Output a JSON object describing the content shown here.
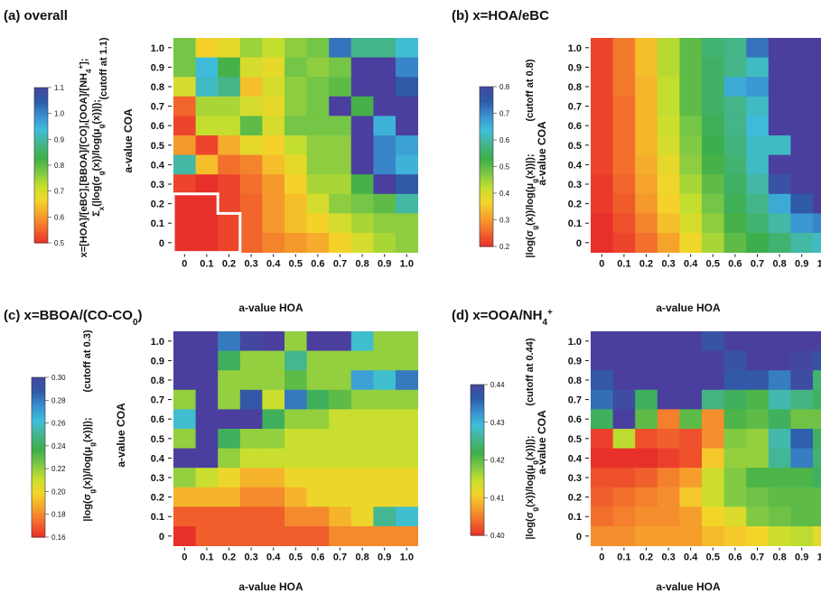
{
  "panels": [
    {
      "title": "(a) overall",
      "title_parts": [
        "(a) overall"
      ],
      "xlabel": "a-value HOA",
      "ylabel": "a-value COA",
      "colorbar_label_lines": [
        "x=[HOA]/[eBC],[BBOA]/[CO],[OOA]/[NH4+];",
        "Σx(|log(σg(x))/log(μg(x))|);",
        "(cutoff at 1.1)"
      ],
      "colorbar_label": "x=[HOA]/[eBC],[BBOA]/[CO],[OOA]/[NH",
      "colorbar_label_sub": "4",
      "colorbar_label_sup": "+",
      "colorbar_label_tail": "];",
      "colorbar_label2": "Σ",
      "colorbar_label2_sub": "x",
      "colorbar_label2_tail": "(|log(σ",
      "colorbar_label2_sub2": "g",
      "colorbar_label2_tail2": "(x))/log(μ",
      "colorbar_label2_sub3": "g",
      "colorbar_label2_tail3": "(x))|);",
      "cutoff": "(cutoff at 1.1)",
      "colorbar_ticks": [
        "0.5",
        "0.6",
        "0.7",
        "0.8",
        "0.9",
        "1.0",
        "1.1"
      ]
    },
    {
      "title": "(b) x=HOA/eBC",
      "xlabel": "a-value HOA",
      "ylabel": "a-value COA",
      "colorbar_label": "|log(σ",
      "colorbar_label_sub": "g",
      "colorbar_label_tail": "(x))/log(μ",
      "colorbar_label_sub2": "g",
      "colorbar_label_tail2": "(x))|);",
      "cutoff": "(cutoff at 0.8)",
      "colorbar_ticks": [
        "0.2",
        "0.3",
        "0.4",
        "0.5",
        "0.6",
        "0.7",
        "0.8"
      ]
    },
    {
      "title": "(c) x=BBOA/(CO-CO",
      "title_sub": "0",
      "title_tail": ")",
      "xlabel": "a-value HOA",
      "ylabel": "a-value COA",
      "colorbar_label": "|log(σ",
      "colorbar_label_sub": "g",
      "colorbar_label_tail": "(x))/log(μ",
      "colorbar_label_sub2": "g",
      "colorbar_label_tail2": "(x))|);",
      "cutoff": "(cutoff at 0.3)",
      "colorbar_ticks": [
        "0.16",
        "0.18",
        "0.20",
        "0.22",
        "0.24",
        "0.26",
        "0.28",
        "0.30"
      ]
    },
    {
      "title": "(d) x=OOA/NH",
      "title_sub": "4",
      "title_sup": "+",
      "xlabel": "a-value HOA",
      "ylabel": "a-value COA",
      "colorbar_label": "|log(σ",
      "colorbar_label_sub": "g",
      "colorbar_label_tail": "(x))/log(μ",
      "colorbar_label_sub2": "g",
      "colorbar_label_tail2": "(x))|);",
      "cutoff": "(cutoff at 0.44)",
      "colorbar_ticks": [
        "0.40",
        "0.41",
        "0.42",
        "0.43",
        "0.44"
      ]
    }
  ],
  "colors": {
    "colormap": [
      "#e8302a",
      "#f26a2c",
      "#f6a22c",
      "#f4d52a",
      "#c6df2e",
      "#7ec845",
      "#3dae49",
      "#44b58a",
      "#3fbedb",
      "#3a8fd0",
      "#2e5ba8",
      "#4447a0"
    ],
    "over_color": "#4a3f9f",
    "highlight_border": "#ffffff"
  },
  "chart_data": [
    {
      "type": "heatmap",
      "title": "(a) overall",
      "xlabel": "a-value HOA",
      "ylabel": "a-value COA",
      "x_categories": [
        "0",
        "0.1",
        "0.2",
        "0.3",
        "0.4",
        "0.5",
        "0.6",
        "0.7",
        "0.8",
        "0.9",
        "1.0"
      ],
      "y_categories": [
        "0",
        "0.1",
        "0.2",
        "0.3",
        "0.4",
        "0.5",
        "0.6",
        "0.7",
        "0.8",
        "0.9",
        "1.0"
      ],
      "colorbar_range": [
        0.5,
        1.1
      ],
      "cutoff": 1.1,
      "highlighted_cells_region": "COA 0–0.2, HOA 0–0.1 plus COA 0–0.1, HOA 0.2",
      "z_rows_top_to_bottom": [
        [
          0.78,
          0.66,
          0.68,
          0.75,
          0.72,
          0.76,
          0.78,
          1.02,
          0.88,
          0.88,
          0.93
        ],
        [
          0.78,
          0.94,
          0.82,
          0.7,
          0.68,
          0.78,
          0.76,
          0.78,
          1.15,
          1.15,
          1.0
        ],
        [
          0.7,
          0.92,
          0.88,
          0.64,
          0.7,
          0.76,
          0.78,
          0.8,
          1.15,
          1.15,
          1.05
        ],
        [
          0.55,
          0.74,
          0.74,
          0.7,
          0.68,
          0.76,
          0.78,
          1.15,
          0.82,
          1.15,
          1.15
        ],
        [
          0.52,
          0.72,
          0.72,
          0.8,
          0.7,
          0.78,
          0.78,
          0.78,
          1.15,
          0.95,
          1.15
        ],
        [
          0.6,
          0.52,
          0.62,
          0.68,
          0.66,
          0.72,
          0.76,
          0.76,
          1.15,
          1.0,
          0.97
        ],
        [
          0.9,
          0.64,
          0.56,
          0.58,
          0.64,
          0.68,
          0.76,
          0.76,
          1.15,
          1.0,
          0.95
        ],
        [
          0.52,
          0.5,
          0.52,
          0.56,
          0.6,
          0.66,
          0.74,
          0.74,
          0.82,
          1.15,
          1.05
        ],
        [
          0.5,
          0.5,
          0.52,
          0.55,
          0.6,
          0.64,
          0.7,
          0.76,
          0.78,
          0.8,
          0.9
        ],
        [
          0.5,
          0.5,
          0.52,
          0.55,
          0.6,
          0.64,
          0.66,
          0.7,
          0.74,
          0.76,
          0.76
        ],
        [
          0.5,
          0.5,
          0.52,
          0.55,
          0.58,
          0.6,
          0.62,
          0.66,
          0.7,
          0.74,
          0.76
        ]
      ]
    },
    {
      "type": "heatmap",
      "title": "(b) x=HOA/eBC",
      "xlabel": "a-value HOA",
      "ylabel": "a-value COA",
      "x_categories": [
        "0",
        "0.1",
        "0.2",
        "0.3",
        "0.4",
        "0.5",
        "0.6",
        "0.7",
        "0.8",
        "0.9",
        "1.0"
      ],
      "y_categories": [
        "0",
        "0.1",
        "0.2",
        "0.3",
        "0.4",
        "0.5",
        "0.6",
        "0.7",
        "0.8",
        "0.9",
        "1.0"
      ],
      "colorbar_range": [
        0.2,
        0.8
      ],
      "cutoff": 0.8,
      "z_rows_top_to_bottom": [
        [
          0.22,
          0.27,
          0.34,
          0.43,
          0.5,
          0.56,
          0.58,
          0.72,
          0.82,
          0.82,
          0.82
        ],
        [
          0.22,
          0.27,
          0.34,
          0.43,
          0.5,
          0.55,
          0.58,
          0.62,
          0.85,
          0.85,
          0.85
        ],
        [
          0.22,
          0.27,
          0.33,
          0.42,
          0.5,
          0.55,
          0.66,
          0.68,
          0.85,
          0.85,
          0.85
        ],
        [
          0.22,
          0.26,
          0.33,
          0.42,
          0.5,
          0.55,
          0.58,
          0.62,
          0.85,
          0.85,
          0.85
        ],
        [
          0.22,
          0.26,
          0.33,
          0.41,
          0.48,
          0.54,
          0.58,
          0.64,
          0.85,
          0.85,
          0.85
        ],
        [
          0.22,
          0.26,
          0.33,
          0.4,
          0.47,
          0.53,
          0.57,
          0.62,
          0.62,
          0.85,
          0.85
        ],
        [
          0.22,
          0.26,
          0.32,
          0.38,
          0.46,
          0.52,
          0.56,
          0.62,
          0.85,
          0.85,
          0.85
        ],
        [
          0.21,
          0.25,
          0.31,
          0.37,
          0.44,
          0.5,
          0.55,
          0.6,
          0.77,
          0.85,
          0.85
        ],
        [
          0.21,
          0.24,
          0.3,
          0.36,
          0.42,
          0.48,
          0.54,
          0.58,
          0.66,
          0.75,
          0.85
        ],
        [
          0.2,
          0.23,
          0.28,
          0.34,
          0.4,
          0.46,
          0.52,
          0.56,
          0.6,
          0.68,
          0.7
        ],
        [
          0.2,
          0.22,
          0.26,
          0.31,
          0.37,
          0.44,
          0.5,
          0.53,
          0.56,
          0.6,
          0.62
        ]
      ]
    },
    {
      "type": "heatmap",
      "title": "(c) x=BBOA/(CO-CO0)",
      "xlabel": "a-value HOA",
      "ylabel": "a-value COA",
      "x_categories": [
        "0",
        "0.1",
        "0.2",
        "0.3",
        "0.4",
        "0.5",
        "0.6",
        "0.7",
        "0.8",
        "0.9",
        "1.0"
      ],
      "y_categories": [
        "0",
        "0.1",
        "0.2",
        "0.3",
        "0.4",
        "0.5",
        "0.6",
        "0.7",
        "0.8",
        "0.9",
        "1.0"
      ],
      "colorbar_range": [
        0.16,
        0.3
      ],
      "cutoff": 0.3,
      "z_rows_top_to_bottom": [
        [
          0.31,
          0.31,
          0.28,
          0.3,
          0.31,
          0.22,
          0.31,
          0.31,
          0.26,
          0.22,
          0.22
        ],
        [
          0.31,
          0.31,
          0.24,
          0.22,
          0.22,
          0.25,
          0.22,
          0.22,
          0.22,
          0.22,
          0.22
        ],
        [
          0.31,
          0.31,
          0.22,
          0.22,
          0.22,
          0.23,
          0.22,
          0.22,
          0.27,
          0.26,
          0.28
        ],
        [
          0.22,
          0.31,
          0.22,
          0.29,
          0.21,
          0.28,
          0.24,
          0.23,
          0.22,
          0.22,
          0.22
        ],
        [
          0.26,
          0.31,
          0.31,
          0.31,
          0.24,
          0.22,
          0.22,
          0.21,
          0.21,
          0.21,
          0.21
        ],
        [
          0.22,
          0.31,
          0.24,
          0.22,
          0.22,
          0.21,
          0.21,
          0.21,
          0.21,
          0.21,
          0.21
        ],
        [
          0.31,
          0.31,
          0.22,
          0.21,
          0.21,
          0.21,
          0.21,
          0.21,
          0.21,
          0.21,
          0.21
        ],
        [
          0.22,
          0.21,
          0.2,
          0.19,
          0.19,
          0.2,
          0.2,
          0.2,
          0.2,
          0.2,
          0.2
        ],
        [
          0.19,
          0.19,
          0.19,
          0.18,
          0.18,
          0.19,
          0.2,
          0.2,
          0.2,
          0.2,
          0.2
        ],
        [
          0.17,
          0.17,
          0.17,
          0.17,
          0.17,
          0.18,
          0.18,
          0.19,
          0.2,
          0.25,
          0.26
        ],
        [
          0.16,
          0.17,
          0.17,
          0.17,
          0.17,
          0.17,
          0.17,
          0.18,
          0.18,
          0.18,
          0.18
        ]
      ]
    },
    {
      "type": "heatmap",
      "title": "(d) x=OOA/NH4+",
      "xlabel": "a-value HOA",
      "ylabel": "a-value COA",
      "x_categories": [
        "0",
        "0.1",
        "0.2",
        "0.3",
        "0.4",
        "0.5",
        "0.6",
        "0.7",
        "0.8",
        "0.9",
        "1.0"
      ],
      "y_categories": [
        "0",
        "0.1",
        "0.2",
        "0.3",
        "0.4",
        "0.5",
        "0.6",
        "0.7",
        "0.8",
        "0.9",
        "1.0"
      ],
      "colorbar_range": [
        0.4,
        0.44
      ],
      "cutoff": 0.44,
      "z_rows_top_to_bottom": [
        [
          0.445,
          0.445,
          0.442,
          0.442,
          0.442,
          0.438,
          0.442,
          0.442,
          0.442,
          0.441,
          0.441
        ],
        [
          0.443,
          0.441,
          0.445,
          0.445,
          0.445,
          0.445,
          0.438,
          0.442,
          0.442,
          0.44,
          0.438
        ],
        [
          0.437,
          0.443,
          0.443,
          0.443,
          0.443,
          0.443,
          0.437,
          0.437,
          0.434,
          0.439,
          0.424
        ],
        [
          0.435,
          0.439,
          0.423,
          0.443,
          0.443,
          0.425,
          0.423,
          0.421,
          0.427,
          0.425,
          0.423
        ],
        [
          0.423,
          0.443,
          0.42,
          0.405,
          0.42,
          0.406,
          0.421,
          0.42,
          0.423,
          0.419,
          0.419
        ],
        [
          0.401,
          0.415,
          0.402,
          0.403,
          0.402,
          0.406,
          0.418,
          0.417,
          0.427,
          0.436,
          0.423
        ],
        [
          0.4,
          0.4,
          0.4,
          0.401,
          0.402,
          0.41,
          0.417,
          0.417,
          0.426,
          0.434,
          0.424
        ],
        [
          0.402,
          0.402,
          0.403,
          0.405,
          0.407,
          0.414,
          0.418,
          0.421,
          0.421,
          0.421,
          0.423
        ],
        [
          0.403,
          0.404,
          0.405,
          0.406,
          0.41,
          0.414,
          0.418,
          0.419,
          0.42,
          0.42,
          0.42
        ],
        [
          0.404,
          0.405,
          0.406,
          0.406,
          0.407,
          0.411,
          0.413,
          0.418,
          0.419,
          0.42,
          0.42
        ],
        [
          0.406,
          0.406,
          0.407,
          0.407,
          0.407,
          0.409,
          0.41,
          0.411,
          0.414,
          0.415,
          0.412
        ]
      ]
    }
  ]
}
